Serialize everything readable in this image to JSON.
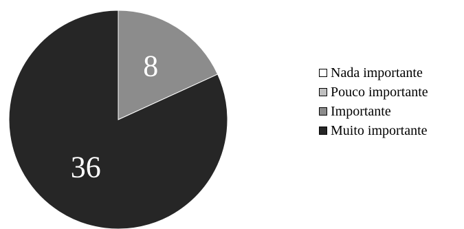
{
  "chart_data": {
    "type": "pie",
    "title": "",
    "categories": [
      "Nada importante",
      "Pouco importante",
      "Importante",
      "Muito importante"
    ],
    "values": [
      0,
      0,
      8,
      36
    ],
    "data_labels": [
      "",
      "",
      "8",
      "36"
    ],
    "colors": [
      "#ffffff",
      "#bfbfbf",
      "#8c8c8c",
      "#262626"
    ],
    "legend_position": "right"
  }
}
